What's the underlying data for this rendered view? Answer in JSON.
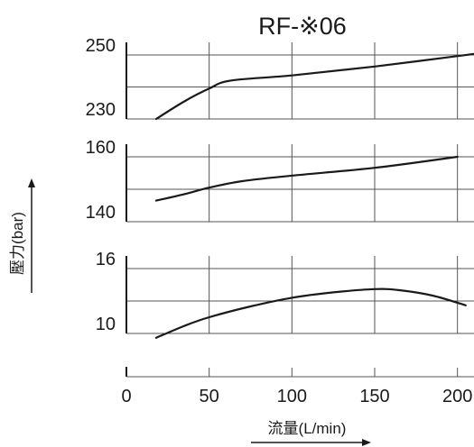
{
  "chart_data": {
    "type": "line",
    "title": "RF-※06",
    "xlabel": "流量(L/min)",
    "ylabel": "壓力(bar)",
    "x_ticks": [
      "0",
      "50",
      "100",
      "150",
      "200"
    ],
    "xlim": [
      0,
      210
    ],
    "grid": true,
    "panels": [
      {
        "y_ticks": [
          "250",
          "230"
        ],
        "ylim": [
          230,
          250
        ],
        "series": [
          {
            "x": [
              18,
              35,
              50,
              63,
              100,
              150,
              210
            ],
            "y": [
              230,
              235.5,
              239.5,
              242,
              243.6,
              246.4,
              250.3
            ]
          }
        ]
      },
      {
        "y_ticks": [
          "160",
          "140"
        ],
        "ylim": [
          140,
          160
        ],
        "series": [
          {
            "x": [
              18,
              35,
              50,
              70,
              100,
              150,
              200
            ],
            "y": [
              146.5,
              148.5,
              150.5,
              152.5,
              154.2,
              156.6,
              160
            ]
          }
        ]
      },
      {
        "y_ticks": [
          "16",
          "10"
        ],
        "ylim": [
          10,
          16
        ],
        "series": [
          {
            "x": [
              18,
              35,
              50,
              75,
              100,
              125,
              150,
              165,
              185,
              205
            ],
            "y": [
              9.6,
              10.7,
              11.5,
              12.5,
              13.3,
              13.8,
              14.1,
              14.0,
              13.5,
              12.6
            ]
          }
        ]
      }
    ]
  }
}
